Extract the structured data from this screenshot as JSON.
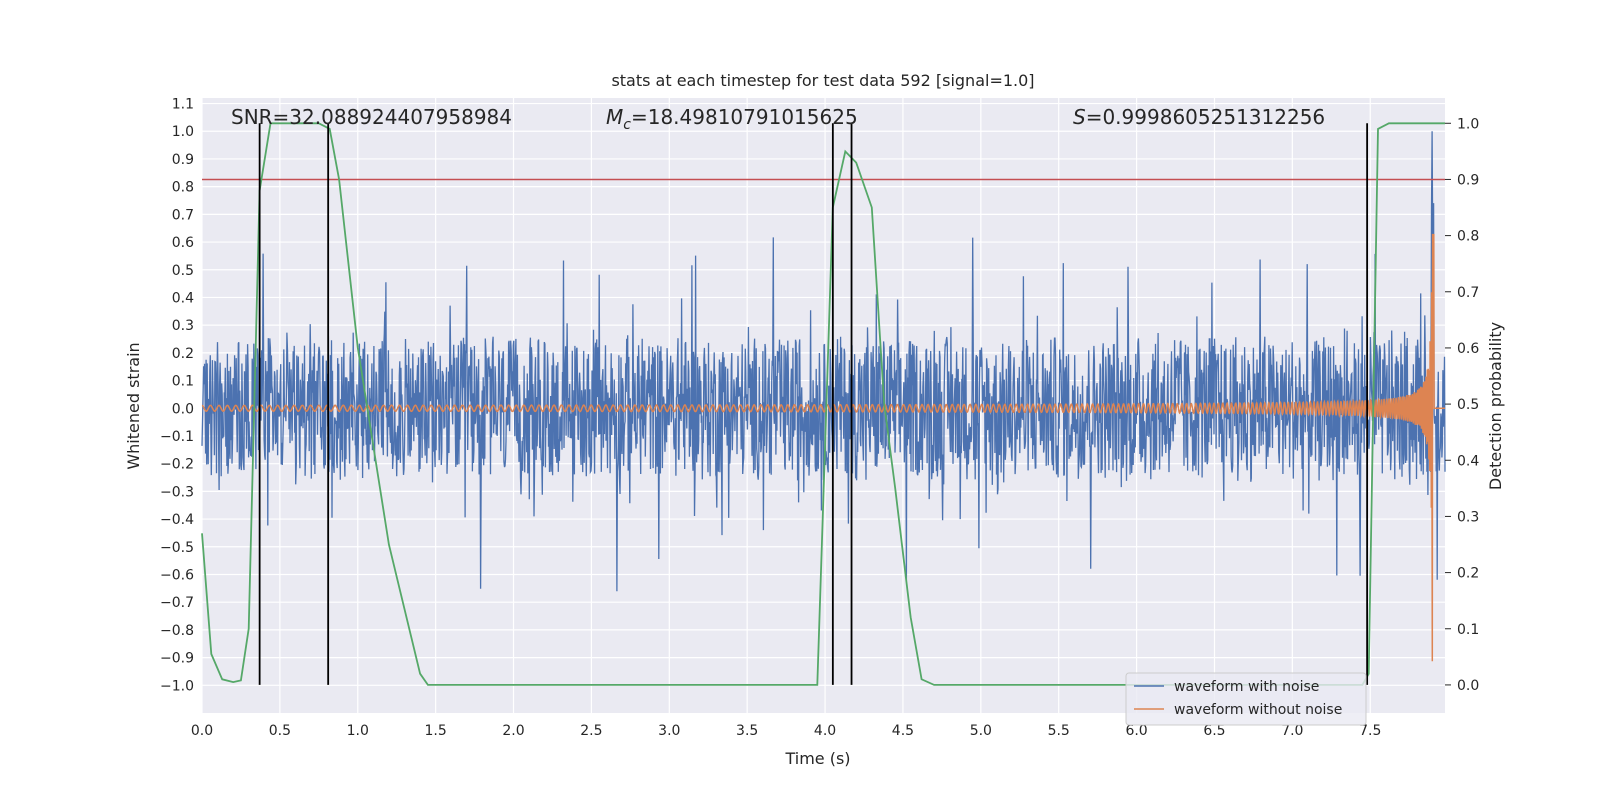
{
  "chart_data": {
    "type": "line",
    "title": "stats at each timestep for test data 592 [signal=1.0]",
    "xlabel": "Time (s)",
    "ylabel": "Whitened strain",
    "y2label": "Detection probability",
    "xlim": [
      0.0,
      7.98
    ],
    "ylim": [
      -1.1,
      1.12
    ],
    "y2lim": [
      -0.05,
      1.045
    ],
    "xticks": [
      0.0,
      0.5,
      1.0,
      1.5,
      2.0,
      2.5,
      3.0,
      3.5,
      4.0,
      4.5,
      5.0,
      5.5,
      6.0,
      6.5,
      7.0,
      7.5
    ],
    "xtick_labels": [
      "0.0",
      "0.5",
      "1.0",
      "1.5",
      "2.0",
      "2.5",
      "3.0",
      "3.5",
      "4.0",
      "4.5",
      "5.0",
      "5.5",
      "6.0",
      "6.5",
      "7.0",
      "7.5"
    ],
    "yticks": [
      -1.0,
      -0.9,
      -0.8,
      -0.7,
      -0.6,
      -0.5,
      -0.4,
      -0.3,
      -0.2,
      -0.1,
      0.0,
      0.1,
      0.2,
      0.3,
      0.4,
      0.5,
      0.6,
      0.7,
      0.8,
      0.9,
      1.0,
      1.1
    ],
    "ytick_labels": [
      "−1.0",
      "−0.9",
      "−0.8",
      "−0.7",
      "−0.6",
      "−0.5",
      "−0.4",
      "−0.3",
      "−0.2",
      "−0.1",
      "0.0",
      "0.1",
      "0.2",
      "0.3",
      "0.4",
      "0.5",
      "0.6",
      "0.7",
      "0.8",
      "0.9",
      "1.0",
      "1.1"
    ],
    "y2ticks": [
      0.0,
      0.1,
      0.2,
      0.3,
      0.4,
      0.5,
      0.6,
      0.7,
      0.8,
      0.9,
      1.0
    ],
    "y2tick_labels": [
      "0.0",
      "0.1",
      "0.2",
      "0.3",
      "0.4",
      "0.5",
      "0.6",
      "0.7",
      "0.8",
      "0.9",
      "1.0"
    ],
    "annotations": {
      "snr": "SNR=32.088924407958984",
      "mc_symbol": "M",
      "mc_sub": "c",
      "mc_value": "=18.49810791015625",
      "s_symbol": "S",
      "s_value": "=0.9998605251312256"
    },
    "threshold": {
      "y2": 0.9,
      "color": "#c44e52"
    },
    "event_markers_x": [
      0.37,
      0.81,
      4.05,
      4.17,
      7.48
    ],
    "series": [
      {
        "name": "waveform with noise",
        "color": "#4c72b0",
        "axis": "left",
        "description": "whitened noisy strain, roughly +/-0.3 typical with spikes to +/-0.6; merger spike to 1.0 near t=7.90",
        "typical_amplitude": 0.25,
        "spike_amplitude": 0.6,
        "merger_peak": 1.0,
        "merger_time": 7.9
      },
      {
        "name": "waveform without noise",
        "color": "#dd8452",
        "axis": "left",
        "description": "chirp signal, amplitude growing from 0.01 to 1.0 at merger t=7.90",
        "start_amplitude": 0.01,
        "peak_amplitude": 1.0,
        "merger_time": 7.9
      },
      {
        "name": "detection probability",
        "color": "#55a868",
        "axis": "right",
        "x": [
          0.0,
          0.06,
          0.13,
          0.2,
          0.25,
          0.3,
          0.37,
          0.44,
          0.5,
          0.6,
          0.75,
          0.82,
          0.88,
          1.0,
          1.2,
          1.4,
          1.45,
          1.5,
          2.0,
          3.0,
          3.85,
          3.95,
          4.05,
          4.13,
          4.2,
          4.3,
          4.38,
          4.45,
          4.55,
          4.62,
          4.7,
          5.0,
          6.0,
          7.0,
          7.45,
          7.49,
          7.55,
          7.62,
          7.98
        ],
        "values": [
          0.27,
          0.055,
          0.01,
          0.005,
          0.008,
          0.1,
          0.88,
          1.0,
          1.0,
          1.0,
          1.0,
          0.99,
          0.9,
          0.6,
          0.25,
          0.02,
          0.0,
          0.0,
          0.0,
          0.0,
          0.0,
          0.0,
          0.85,
          0.95,
          0.93,
          0.85,
          0.5,
          0.35,
          0.12,
          0.01,
          0.0,
          0.0,
          0.0,
          0.0,
          0.0,
          0.02,
          0.99,
          1.0,
          1.0
        ]
      }
    ],
    "legend": {
      "placement": "lower-right",
      "entries": [
        "waveform with noise",
        "waveform without noise"
      ]
    }
  },
  "colors": {
    "plot_background": "#eaeaf2",
    "grid": "#ffffff",
    "event_marker": "#000000"
  }
}
